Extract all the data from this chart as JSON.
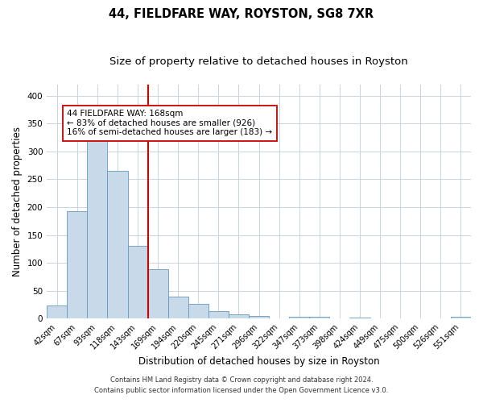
{
  "title1": "44, FIELDFARE WAY, ROYSTON, SG8 7XR",
  "title2": "Size of property relative to detached houses in Royston",
  "xlabel": "Distribution of detached houses by size in Royston",
  "ylabel": "Number of detached properties",
  "categories": [
    "42sqm",
    "67sqm",
    "93sqm",
    "118sqm",
    "143sqm",
    "169sqm",
    "194sqm",
    "220sqm",
    "245sqm",
    "271sqm",
    "296sqm",
    "322sqm",
    "347sqm",
    "373sqm",
    "398sqm",
    "424sqm",
    "449sqm",
    "475sqm",
    "500sqm",
    "526sqm",
    "551sqm"
  ],
  "values": [
    23,
    193,
    328,
    265,
    130,
    88,
    40,
    26,
    14,
    8,
    5,
    0,
    4,
    3,
    0,
    2,
    0,
    0,
    0,
    0,
    3
  ],
  "bar_color": "#c8daea",
  "bar_edge_color": "#6699bb",
  "vline_color": "#cc0000",
  "vline_position": 4.5,
  "annotation_line1": "44 FIELDFARE WAY: 168sqm",
  "annotation_line2": "← 83% of detached houses are smaller (926)",
  "annotation_line3": "16% of semi-detached houses are larger (183) →",
  "annotation_box_edge_color": "#cc0000",
  "annotation_box_face_color": "#ffffff",
  "ylim": [
    0,
    420
  ],
  "yticks": [
    0,
    50,
    100,
    150,
    200,
    250,
    300,
    350,
    400
  ],
  "footer1": "Contains HM Land Registry data © Crown copyright and database right 2024.",
  "footer2": "Contains public sector information licensed under the Open Government Licence v3.0.",
  "bg_color": "#ffffff",
  "plot_bg_color": "#ffffff",
  "grid_color": "#c8d4e0",
  "title_fontsize": 10.5,
  "subtitle_fontsize": 9.5,
  "tick_fontsize": 7,
  "label_fontsize": 8.5,
  "footer_fontsize": 6,
  "annotation_fontsize": 7.5
}
